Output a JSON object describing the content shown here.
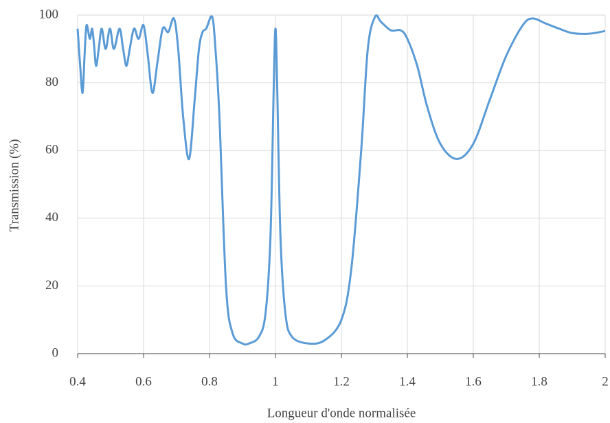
{
  "chart_data": {
    "type": "line",
    "xlabel": "Longueur d'onde normalisée",
    "ylabel": "Transmission (%)",
    "x": [
      0.4,
      0.407,
      0.415,
      0.421,
      0.427,
      0.437,
      0.444,
      0.45,
      0.456,
      0.464,
      0.473,
      0.485,
      0.498,
      0.51,
      0.527,
      0.538,
      0.548,
      0.558,
      0.571,
      0.585,
      0.6,
      0.613,
      0.627,
      0.642,
      0.658,
      0.675,
      0.692,
      0.705,
      0.72,
      0.738,
      0.755,
      0.768,
      0.779,
      0.79,
      0.808,
      0.818,
      0.83,
      0.85,
      0.87,
      0.9,
      0.92,
      0.95,
      0.97,
      0.985,
      0.995,
      1.0,
      1.005,
      1.015,
      1.03,
      1.05,
      1.1,
      1.15,
      1.2,
      1.23,
      1.26,
      1.28,
      1.302,
      1.32,
      1.35,
      1.38,
      1.4,
      1.43,
      1.46,
      1.5,
      1.55,
      1.6,
      1.65,
      1.7,
      1.75,
      1.78,
      1.82,
      1.86,
      1.9,
      1.95,
      2.0
    ],
    "series": [
      {
        "name": "Transmission",
        "color": "#5b9bd5",
        "values": [
          96,
          86,
          77,
          88,
          97,
          93,
          96,
          91,
          85,
          90,
          96,
          90,
          96,
          90,
          96,
          90,
          85,
          90,
          96,
          93,
          97,
          88,
          77,
          86,
          96,
          95,
          99,
          90,
          70,
          57.5,
          75,
          90,
          95,
          96,
          99.5,
          90,
          70,
          20,
          6,
          3,
          3,
          5,
          12,
          35,
          80,
          96,
          80,
          35,
          12,
          5,
          3,
          4,
          10,
          25,
          60,
          90,
          99.5,
          98,
          95.5,
          95.5,
          93,
          85,
          73,
          62,
          57.5,
          62,
          75,
          88,
          97,
          99,
          97.5,
          96,
          94.7,
          94.5,
          95.3
        ]
      }
    ],
    "xlim": [
      0.4,
      2
    ],
    "ylim": [
      0,
      100
    ],
    "xticks": [
      0.4,
      0.6,
      0.8,
      1,
      1.2,
      1.4,
      1.6,
      1.8,
      2
    ],
    "yticks": [
      0,
      20,
      40,
      60,
      80,
      100
    ],
    "grid": true
  }
}
